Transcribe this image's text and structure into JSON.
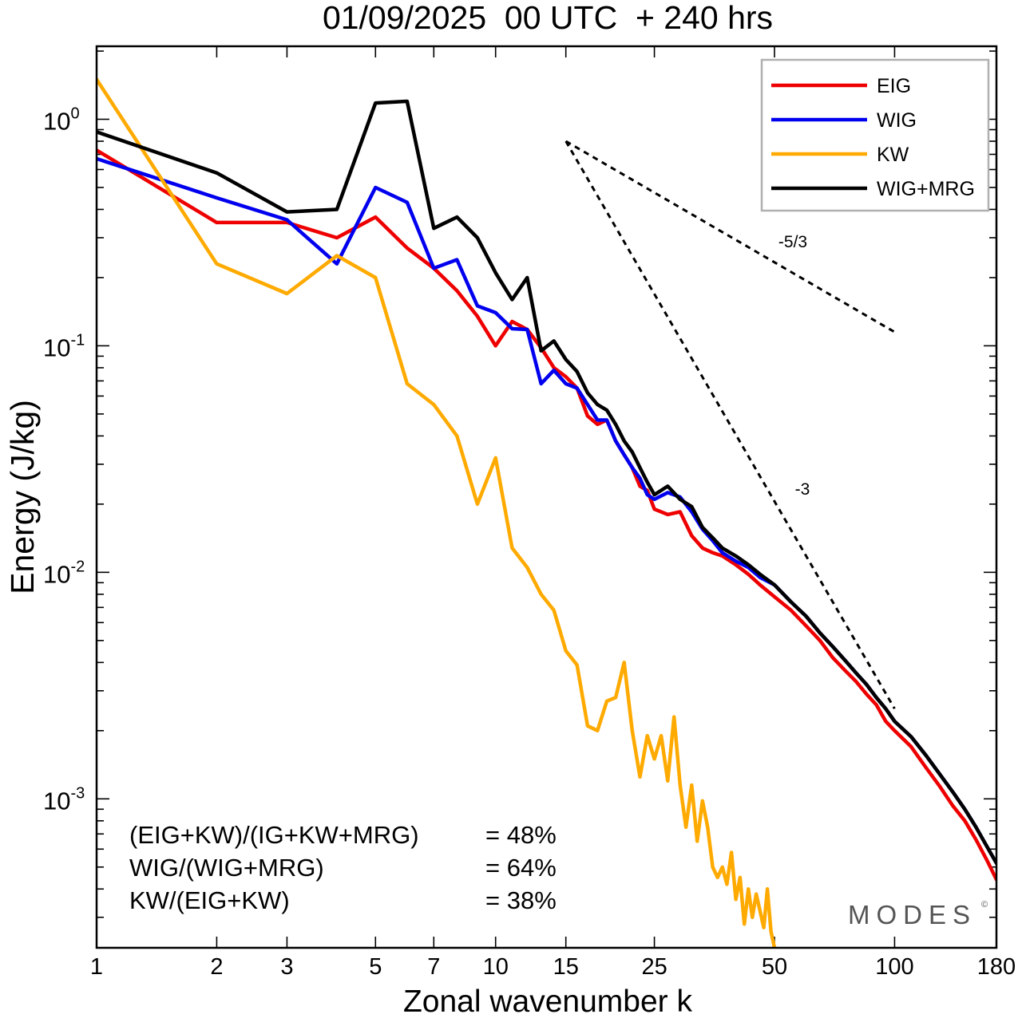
{
  "chart_data": {
    "type": "line",
    "title": "01/09/2025  00 UTC  + 240 hrs",
    "xlabel": "Zonal wavenumber k",
    "ylabel": "Energy (J/kg)",
    "xscale": "log",
    "yscale": "log",
    "xlim": [
      1,
      180
    ],
    "ylim": [
      0.00022,
      2.1
    ],
    "xticks": [
      1,
      2,
      3,
      5,
      7,
      10,
      15,
      25,
      50,
      100,
      180
    ],
    "xtick_labels": [
      "1",
      "2",
      "3",
      "5",
      "7",
      "10",
      "15",
      "25",
      "50",
      "100",
      "180"
    ],
    "yticks": [
      {
        "value": 1,
        "base": "10",
        "exp": "0"
      },
      {
        "value": 0.1,
        "base": "10",
        "exp": "-1"
      },
      {
        "value": 0.01,
        "base": "10",
        "exp": "-2"
      },
      {
        "value": 0.001,
        "base": "10",
        "exp": "-3"
      }
    ],
    "legend_position": "top-right",
    "series": [
      {
        "name": "EIG",
        "color": "#ee0000",
        "points": [
          [
            1,
            0.73
          ],
          [
            2,
            0.35
          ],
          [
            3,
            0.35
          ],
          [
            4,
            0.3
          ],
          [
            5,
            0.37
          ],
          [
            6,
            0.27
          ],
          [
            7,
            0.22
          ],
          [
            8,
            0.175
          ],
          [
            9,
            0.135
          ],
          [
            10,
            0.1
          ],
          [
            11,
            0.128
          ],
          [
            12,
            0.118
          ],
          [
            13,
            0.098
          ],
          [
            14,
            0.08
          ],
          [
            15,
            0.073
          ],
          [
            16,
            0.065
          ],
          [
            17,
            0.049
          ],
          [
            18,
            0.045
          ],
          [
            19,
            0.047
          ],
          [
            20,
            0.038
          ],
          [
            21,
            0.033
          ],
          [
            22,
            0.029
          ],
          [
            23,
            0.024
          ],
          [
            24,
            0.023
          ],
          [
            25,
            0.019
          ],
          [
            27,
            0.018
          ],
          [
            29,
            0.0185
          ],
          [
            31,
            0.0145
          ],
          [
            33,
            0.0128
          ],
          [
            35,
            0.0122
          ],
          [
            37,
            0.0118
          ],
          [
            40,
            0.0108
          ],
          [
            43,
            0.0098
          ],
          [
            46,
            0.0088
          ],
          [
            50,
            0.0078
          ],
          [
            55,
            0.0068
          ],
          [
            60,
            0.0058
          ],
          [
            65,
            0.005
          ],
          [
            70,
            0.0042
          ],
          [
            75,
            0.0037
          ],
          [
            80,
            0.0033
          ],
          [
            85,
            0.0029
          ],
          [
            90,
            0.0026
          ],
          [
            95,
            0.0022
          ],
          [
            100,
            0.002
          ],
          [
            110,
            0.0017
          ],
          [
            120,
            0.00137
          ],
          [
            130,
            0.00113
          ],
          [
            140,
            0.00093
          ],
          [
            150,
            0.0008
          ],
          [
            160,
            0.00066
          ],
          [
            170,
            0.00054
          ],
          [
            180,
            0.00044
          ]
        ]
      },
      {
        "name": "WIG",
        "color": "#0000ee",
        "points": [
          [
            1,
            0.67
          ],
          [
            2,
            0.45
          ],
          [
            3,
            0.36
          ],
          [
            4,
            0.23
          ],
          [
            5,
            0.5
          ],
          [
            6,
            0.43
          ],
          [
            7,
            0.22
          ],
          [
            8,
            0.24
          ],
          [
            9,
            0.15
          ],
          [
            10,
            0.14
          ],
          [
            11,
            0.119
          ],
          [
            12,
            0.118
          ],
          [
            13,
            0.068
          ],
          [
            14,
            0.078
          ],
          [
            15,
            0.068
          ],
          [
            16,
            0.065
          ],
          [
            17,
            0.055
          ],
          [
            18,
            0.047
          ],
          [
            19,
            0.047
          ],
          [
            20,
            0.038
          ],
          [
            21,
            0.033
          ],
          [
            22,
            0.029
          ],
          [
            23,
            0.026
          ],
          [
            24,
            0.022
          ],
          [
            25,
            0.021
          ],
          [
            27,
            0.0225
          ],
          [
            29,
            0.0215
          ],
          [
            31,
            0.0185
          ],
          [
            33,
            0.0155
          ],
          [
            35,
            0.0138
          ],
          [
            37,
            0.0122
          ],
          [
            40,
            0.0112
          ],
          [
            43,
            0.0105
          ],
          [
            46,
            0.0095
          ],
          [
            50,
            0.0088
          ],
          [
            55,
            0.0074
          ],
          [
            60,
            0.0064
          ],
          [
            65,
            0.0054
          ],
          [
            70,
            0.0047
          ],
          [
            75,
            0.0041
          ],
          [
            80,
            0.0036
          ],
          [
            85,
            0.0032
          ],
          [
            90,
            0.0028
          ],
          [
            95,
            0.0025
          ],
          [
            100,
            0.0022
          ],
          [
            110,
            0.00188
          ],
          [
            120,
            0.00155
          ],
          [
            130,
            0.00128
          ],
          [
            140,
            0.00107
          ],
          [
            150,
            0.0009
          ],
          [
            160,
            0.00075
          ],
          [
            170,
            0.00062
          ],
          [
            180,
            0.00052
          ]
        ]
      },
      {
        "name": "KW",
        "color": "#ffaa00",
        "points": [
          [
            1,
            1.5
          ],
          [
            2,
            0.23
          ],
          [
            3,
            0.17
          ],
          [
            4,
            0.25
          ],
          [
            5,
            0.2
          ],
          [
            6,
            0.068
          ],
          [
            7,
            0.055
          ],
          [
            8,
            0.04
          ],
          [
            9,
            0.02
          ],
          [
            10,
            0.032
          ],
          [
            11,
            0.0128
          ],
          [
            12,
            0.0105
          ],
          [
            13,
            0.008
          ],
          [
            14,
            0.0068
          ],
          [
            15,
            0.0045
          ],
          [
            16,
            0.0039
          ],
          [
            17,
            0.0021
          ],
          [
            18,
            0.002
          ],
          [
            19,
            0.0027
          ],
          [
            20,
            0.0028
          ],
          [
            21,
            0.004
          ],
          [
            22,
            0.002
          ],
          [
            23,
            0.00125
          ],
          [
            24,
            0.0019
          ],
          [
            25,
            0.0015
          ],
          [
            26,
            0.0019
          ],
          [
            27,
            0.0012
          ],
          [
            28,
            0.0023
          ],
          [
            29,
            0.00115
          ],
          [
            30,
            0.00075
          ],
          [
            31,
            0.00115
          ],
          [
            32,
            0.00065
          ],
          [
            33,
            0.00098
          ],
          [
            34,
            0.00075
          ],
          [
            35,
            0.0005
          ],
          [
            36,
            0.00045
          ],
          [
            37,
            0.0005
          ],
          [
            38,
            0.00042
          ],
          [
            39,
            0.00058
          ],
          [
            40,
            0.00036
          ],
          [
            41,
            0.00045
          ],
          [
            42,
            0.00028
          ],
          [
            43,
            0.0004
          ],
          [
            44,
            0.0003
          ],
          [
            45,
            0.00038
          ],
          [
            46,
            0.00032
          ],
          [
            47,
            0.00027
          ],
          [
            48,
            0.0004
          ],
          [
            49,
            0.00026
          ],
          [
            50,
            0.00022
          ]
        ]
      },
      {
        "name": "WIG+MRG",
        "color": "#000000",
        "points": [
          [
            1,
            0.88
          ],
          [
            2,
            0.58
          ],
          [
            3,
            0.39
          ],
          [
            4,
            0.4
          ],
          [
            5,
            1.18
          ],
          [
            6,
            1.2
          ],
          [
            7,
            0.33
          ],
          [
            8,
            0.37
          ],
          [
            9,
            0.3
          ],
          [
            10,
            0.21
          ],
          [
            11,
            0.16
          ],
          [
            12,
            0.2
          ],
          [
            13,
            0.095
          ],
          [
            14,
            0.105
          ],
          [
            15,
            0.087
          ],
          [
            16,
            0.077
          ],
          [
            17,
            0.062
          ],
          [
            18,
            0.055
          ],
          [
            19,
            0.052
          ],
          [
            20,
            0.045
          ],
          [
            21,
            0.038
          ],
          [
            22,
            0.034
          ],
          [
            23,
            0.029
          ],
          [
            24,
            0.025
          ],
          [
            25,
            0.022
          ],
          [
            27,
            0.024
          ],
          [
            29,
            0.021
          ],
          [
            31,
            0.0195
          ],
          [
            33,
            0.0158
          ],
          [
            35,
            0.0142
          ],
          [
            37,
            0.0128
          ],
          [
            40,
            0.0118
          ],
          [
            43,
            0.0108
          ],
          [
            46,
            0.0098
          ],
          [
            50,
            0.0088
          ],
          [
            55,
            0.0074
          ],
          [
            60,
            0.0064
          ],
          [
            65,
            0.0054
          ],
          [
            70,
            0.0047
          ],
          [
            75,
            0.0041
          ],
          [
            80,
            0.0036
          ],
          [
            85,
            0.0032
          ],
          [
            90,
            0.0028
          ],
          [
            95,
            0.0025
          ],
          [
            100,
            0.0022
          ],
          [
            110,
            0.00188
          ],
          [
            120,
            0.00155
          ],
          [
            130,
            0.00128
          ],
          [
            140,
            0.00107
          ],
          [
            150,
            0.0009
          ],
          [
            160,
            0.00075
          ],
          [
            170,
            0.00062
          ],
          [
            180,
            0.00052
          ]
        ]
      }
    ],
    "reference_slopes": [
      {
        "label": "-5/3",
        "start": [
          15,
          0.8
        ],
        "end": [
          100,
          0.115
        ]
      },
      {
        "label": "-3",
        "start": [
          15,
          0.8
        ],
        "end": [
          100,
          0.0025
        ]
      }
    ],
    "statistics": [
      {
        "label": "(EIG+KW)/(IG+KW+MRG)",
        "value": "= 48%"
      },
      {
        "label": "WIG/(WIG+MRG)",
        "value": "= 64%"
      },
      {
        "label": "KW/(EIG+KW)",
        "value": "= 38%"
      }
    ],
    "watermark": "MODES",
    "watermark_mark": "©"
  }
}
